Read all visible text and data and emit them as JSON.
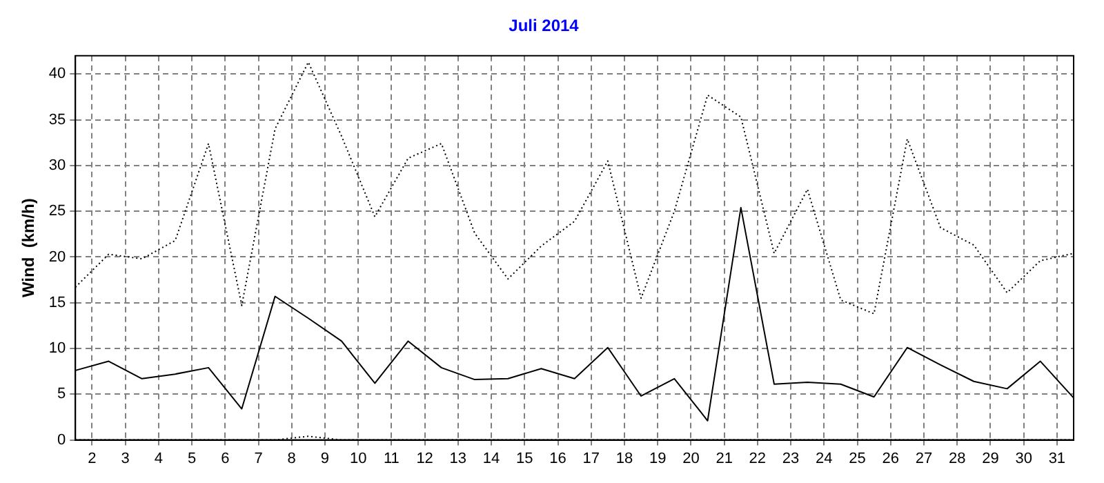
{
  "chart_data": {
    "type": "line",
    "title": "Juli 2014",
    "ylabel": "Wind  (km/h)",
    "x": [
      1.5,
      2.5,
      3.5,
      4.5,
      5.5,
      6.5,
      7.5,
      8.5,
      9.5,
      10.5,
      11.5,
      12.5,
      13.5,
      14.5,
      15.5,
      16.5,
      17.5,
      18.5,
      19.5,
      20.5,
      21.5,
      22.5,
      23.5,
      24.5,
      25.5,
      26.5,
      27.5,
      28.5,
      29.5,
      30.5,
      31.5
    ],
    "series": [
      {
        "color": "#000000",
        "line_style": "dotted",
        "values": [
          16.7,
          20.3,
          19.8,
          21.8,
          32.4,
          14.7,
          34,
          41.3,
          33.2,
          24.4,
          30.8,
          32.4,
          22.6,
          17.6,
          21.2,
          23.9,
          30.5,
          15.5,
          25,
          37.7,
          35.3,
          20.4,
          27.4,
          15.3,
          13.8,
          32.9,
          23.2,
          21.3,
          16.1,
          19.6,
          20.4
        ]
      },
      {
        "color": "#000000",
        "line_style": "solid",
        "values": [
          7.6,
          8.6,
          6.7,
          7.2,
          7.9,
          3.4,
          15.7,
          13.3,
          10.8,
          6.2,
          10.8,
          7.9,
          6.6,
          6.7,
          7.8,
          6.7,
          10.1,
          4.8,
          6.7,
          2.1,
          25.4,
          6.1,
          6.3,
          6.1,
          4.7,
          10.1,
          8.2,
          6.4,
          5.6,
          8.6,
          4.6
        ]
      },
      {
        "color": "#000000",
        "line_style": "dotted",
        "values": [
          0,
          0,
          0,
          0,
          0,
          0,
          0,
          0.4,
          0,
          0,
          0,
          0,
          0,
          0,
          0,
          0,
          0,
          0,
          0,
          0,
          0,
          0,
          0,
          0,
          0,
          0,
          0,
          0,
          0,
          0,
          0
        ]
      }
    ],
    "xlim": [
      1.5,
      31.5
    ],
    "xticks": [
      2,
      3,
      4,
      5,
      6,
      7,
      8,
      9,
      10,
      11,
      12,
      13,
      14,
      15,
      16,
      17,
      18,
      19,
      20,
      21,
      22,
      23,
      24,
      25,
      26,
      27,
      28,
      29,
      30,
      31
    ],
    "ylim": [
      0,
      42
    ],
    "yticks": [
      0,
      5,
      10,
      15,
      20,
      25,
      30,
      35,
      40
    ],
    "grid": true,
    "legend": false,
    "marker": "none"
  }
}
